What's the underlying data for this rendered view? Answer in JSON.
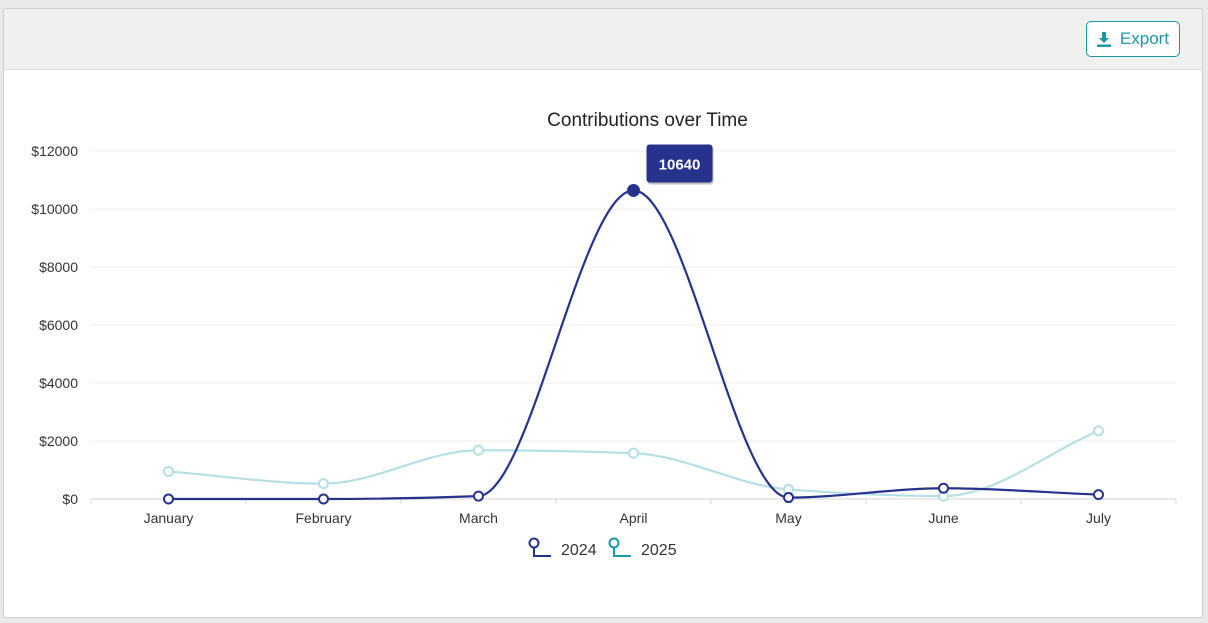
{
  "toolbar": {
    "export_label": "Export",
    "export_icon": "download-icon"
  },
  "colors": {
    "series_2024": "#25338c",
    "series_2025": "#b4dfe6",
    "legend_2025": "#1b97a6",
    "accent": "#1b97a6",
    "tooltip_bg": "#25338c"
  },
  "chart_data": {
    "type": "line",
    "title": "Contributions over Time",
    "xlabel": "",
    "ylabel": "",
    "categories": [
      "January",
      "February",
      "March",
      "April",
      "May",
      "June",
      "July"
    ],
    "ylim": [
      0,
      12000
    ],
    "yticks": [
      0,
      2000,
      4000,
      6000,
      8000,
      10000,
      12000
    ],
    "ytick_labels": [
      "$0",
      "$2000",
      "$4000",
      "$6000",
      "$8000",
      "$10000",
      "$12000"
    ],
    "grid": true,
    "smooth": true,
    "legend_position": "bottom",
    "series": [
      {
        "name": "2024",
        "values": [
          0,
          0,
          100,
          10640,
          50,
          370,
          150
        ]
      },
      {
        "name": "2025",
        "values": [
          950,
          530,
          1680,
          1580,
          330,
          100,
          2350
        ]
      }
    ],
    "tooltip": {
      "series": "2024",
      "category": "April",
      "text": "10640"
    }
  }
}
